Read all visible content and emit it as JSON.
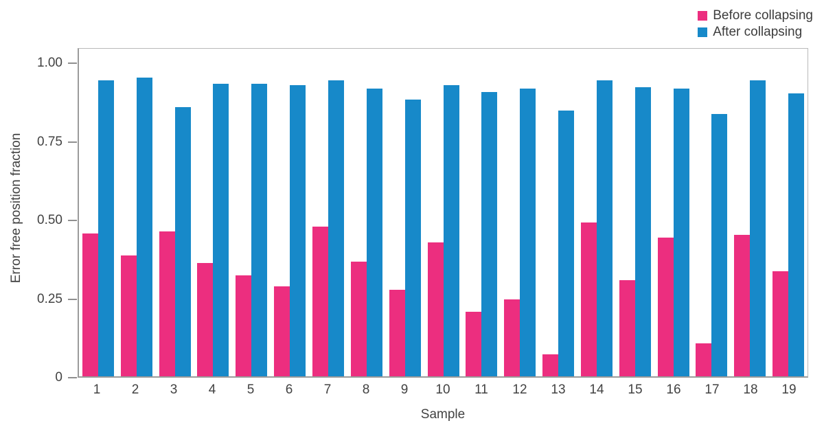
{
  "chart_data": {
    "type": "bar",
    "title": "",
    "categories": [
      "1",
      "2",
      "3",
      "4",
      "5",
      "6",
      "7",
      "8",
      "9",
      "10",
      "11",
      "12",
      "13",
      "14",
      "15",
      "16",
      "17",
      "18",
      "19"
    ],
    "series": [
      {
        "name": "Before collapsing",
        "color": "#ec2e7f",
        "values": [
          0.455,
          0.385,
          0.46,
          0.36,
          0.32,
          0.285,
          0.475,
          0.365,
          0.275,
          0.425,
          0.205,
          0.245,
          0.07,
          0.49,
          0.305,
          0.44,
          0.105,
          0.45,
          0.335
        ]
      },
      {
        "name": "After collapsing",
        "color": "#1789c9",
        "values": [
          0.94,
          0.95,
          0.855,
          0.93,
          0.93,
          0.925,
          0.94,
          0.915,
          0.88,
          0.925,
          0.905,
          0.915,
          0.845,
          0.94,
          0.92,
          0.915,
          0.835,
          0.94,
          0.9
        ]
      }
    ],
    "xlabel": "Sample",
    "ylabel": "Error free position fraction",
    "yticks": [
      {
        "label": "0",
        "value": 0
      },
      {
        "label": "0.25",
        "value": 0.25
      },
      {
        "label": "0.50",
        "value": 0.5
      },
      {
        "label": "0.75",
        "value": 0.75
      },
      {
        "label": "1.00",
        "value": 1.0
      }
    ],
    "ylim": [
      0,
      1.048
    ],
    "grid": false,
    "legend_position": "top-right",
    "axis_color": "#9b9b9b",
    "text_color": "#424242"
  }
}
